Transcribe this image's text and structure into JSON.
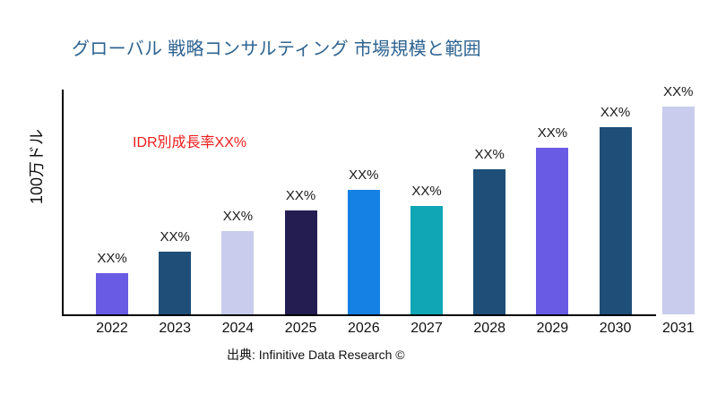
{
  "title": {
    "text": "グローバル 戦略コンサルティング 市場規模と範囲",
    "color": "#2E6491"
  },
  "annotation": {
    "text": "IDR別成長率XX%",
    "color": "#EE1C1C"
  },
  "axes": {
    "y_label": "100万ドル",
    "axis_color": "#000000"
  },
  "source": {
    "text": "出典: Infinitive Data Research ©"
  },
  "chart_data": {
    "type": "bar",
    "title": "グローバル 戦略コンサルティング 市場規模と範囲",
    "categories": [
      "2022",
      "2023",
      "2024",
      "2025",
      "2026",
      "2027",
      "2028",
      "2029",
      "2030",
      "2031"
    ],
    "values": [
      20,
      30,
      40,
      50,
      60,
      52,
      70,
      80,
      90,
      100
    ],
    "value_labels": [
      "XX%",
      "XX%",
      "XX%",
      "XX%",
      "XX%",
      "XX%",
      "XX%",
      "XX%",
      "XX%",
      "XX%"
    ],
    "bar_colors": [
      "#6A5BE4",
      "#1F4E79",
      "#C9CCED",
      "#231D52",
      "#1581E4",
      "#10A6B6",
      "#1F4E79",
      "#6A5BE4",
      "#1F4E79",
      "#C9CCED"
    ],
    "xlabel": "",
    "ylabel": "100万ドル",
    "ylim": [
      0,
      108
    ],
    "grid": false,
    "legend": false
  }
}
